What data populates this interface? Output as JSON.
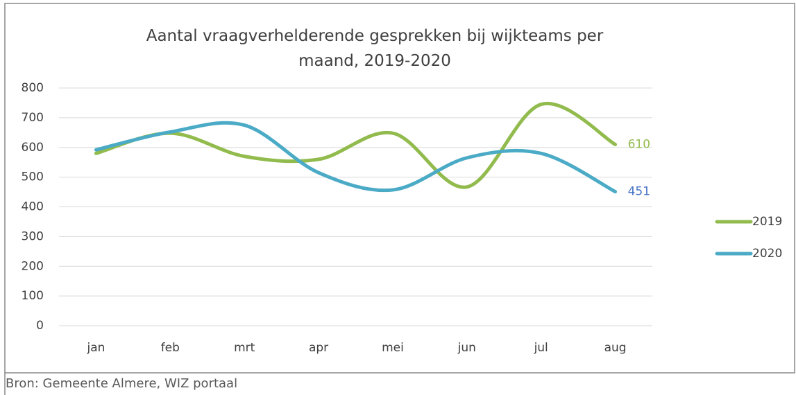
{
  "chart_data": {
    "type": "line",
    "title": "Aantal vraagverhelderende gesprekken bij wijkteams per maand, 2019-2020",
    "categories": [
      "jan",
      "feb",
      "mrt",
      "apr",
      "mei",
      "jun",
      "jul",
      "aug"
    ],
    "series": [
      {
        "name": "2019",
        "color": "#92bb4e",
        "values": [
          580,
          648,
          570,
          560,
          648,
          467,
          745,
          610
        ]
      },
      {
        "name": "2020",
        "color": "#4babc6",
        "values": [
          592,
          652,
          675,
          515,
          457,
          565,
          580,
          451
        ]
      }
    ],
    "ylim": [
      0,
      800
    ],
    "yticks": [
      0,
      100,
      200,
      300,
      400,
      500,
      600,
      700,
      800
    ],
    "grid": true,
    "smooth": true,
    "legend": "right",
    "source": "Bron: Gemeente Almere, WIZ portaal"
  }
}
